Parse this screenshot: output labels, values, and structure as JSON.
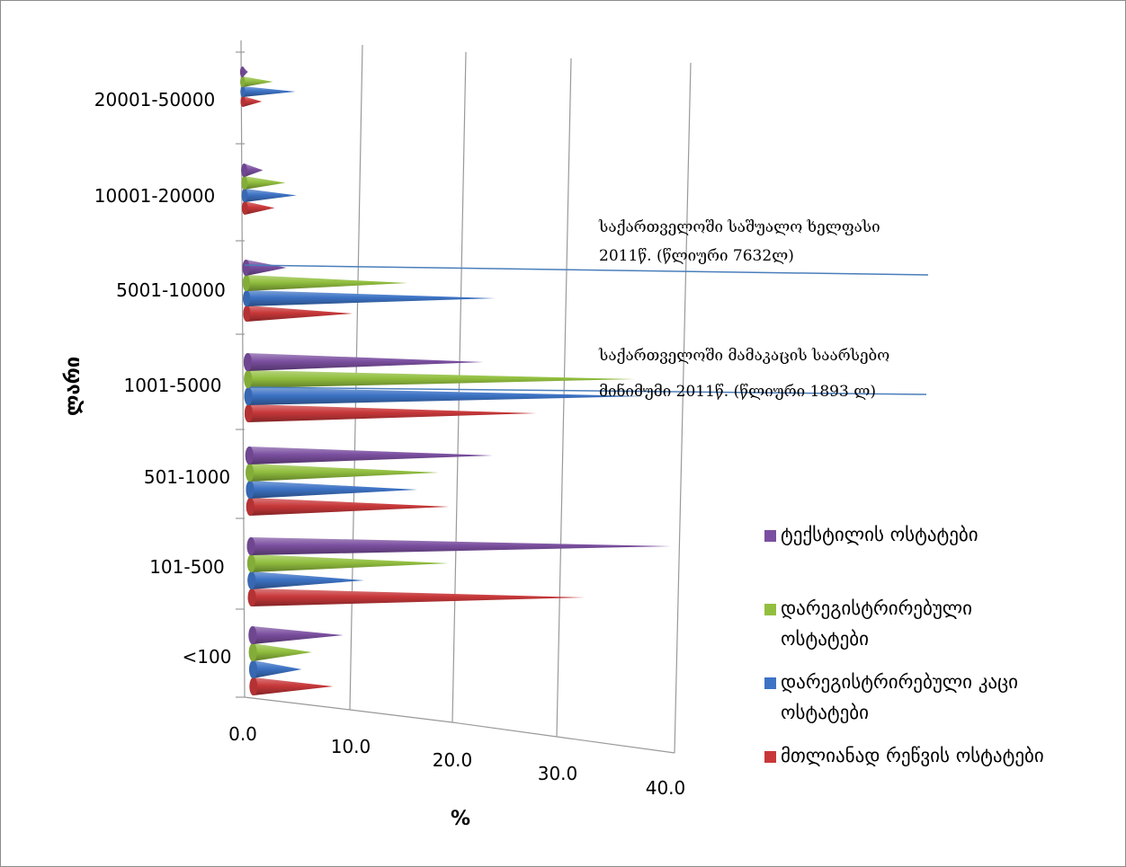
{
  "chart_data": {
    "type": "bar",
    "orientation": "horizontal",
    "style": "3d-cone",
    "categories": [
      "<100",
      "101-500",
      "501-1000",
      "1001-5000",
      "5001-10000",
      "10001-20000",
      "20001-50000"
    ],
    "series": [
      {
        "name": "ტექსტილის ოსტატები",
        "color": "#7b4fa0",
        "values": [
          9,
          40,
          23,
          22,
          4,
          2,
          0.5
        ]
      },
      {
        "name": "დარეგისტრირებული ოსტატები",
        "color": "#92bf3f",
        "values": [
          6,
          19,
          18,
          36,
          15,
          4,
          3
        ]
      },
      {
        "name": "დარეგისტრირებული კაცი ოსტატები",
        "color": "#3d73c5",
        "values": [
          5,
          11,
          16,
          37,
          23,
          5,
          5
        ]
      },
      {
        "name": "მთლიანად რეწვის ოსტატები",
        "color": "#c8383a",
        "values": [
          8,
          32,
          19,
          27,
          10,
          3,
          2
        ]
      }
    ],
    "xlim": [
      0,
      40
    ],
    "xticks": [
      "0.0",
      "10.0",
      "20.0",
      "30.0",
      "40.0"
    ],
    "xlabel": "%",
    "ylabel": "ლარი",
    "legend_position": "right",
    "annotations": [
      {
        "lines": [
          "საქართველოში  საშუალო  ხელფასი",
          "2011წ.  (წლიური  7632ლ)"
        ]
      },
      {
        "lines": [
          "საქართველოში  მამაკაცის საარსებო",
          "მინიმუმი  2011წ.  (წლიური  1893 ლ)"
        ]
      }
    ]
  }
}
